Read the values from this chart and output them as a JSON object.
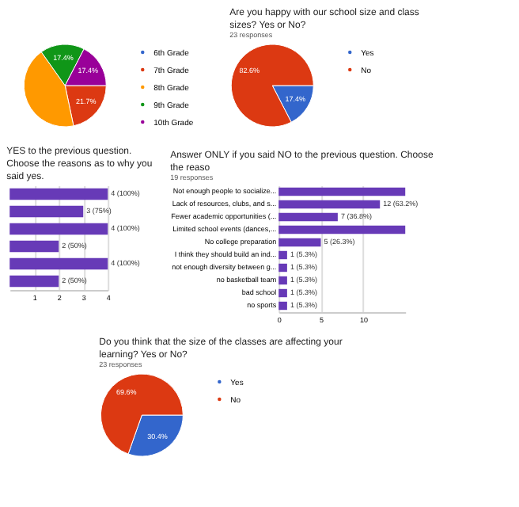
{
  "chart_data": [
    {
      "type": "pie",
      "categories": [
        "6th Grade",
        "7th Grade",
        "8th Grade",
        "9th Grade",
        "10th Grade"
      ],
      "values": [
        0,
        21.7,
        43.5,
        17.4,
        17.4
      ],
      "colors": [
        "#3366cc",
        "#dc3912",
        "#ff9900",
        "#109618",
        "#990099"
      ],
      "value_labels": [
        null,
        "21.7%",
        null,
        "17.4%",
        "17.4%"
      ],
      "legend": "right"
    },
    {
      "type": "pie",
      "title": "Are you happy with our school size and class sizes? Yes or No?",
      "subtitle": "23 responses",
      "categories": [
        "Yes",
        "No"
      ],
      "values": [
        17.4,
        82.6
      ],
      "colors": [
        "#3366cc",
        "#dc3912"
      ],
      "value_labels": [
        "17.4%",
        "82.6%"
      ],
      "legend": "right"
    },
    {
      "type": "bar",
      "orientation": "horizontal",
      "title": "YES to the previous question. Choose the reasons as to why you said yes.",
      "categories": [
        null,
        null,
        null,
        null,
        null,
        null
      ],
      "values": [
        4,
        3,
        4,
        2,
        4,
        2
      ],
      "color": "#673ab7",
      "value_labels": [
        "4 (100%)",
        "3 (75%)",
        "4 (100%)",
        "2 (50%)",
        "4 (100%)",
        "2 (50%)"
      ],
      "xlim": [
        0,
        4
      ],
      "xticks": [
        1,
        2,
        3,
        4
      ],
      "grid": "x"
    },
    {
      "type": "bar",
      "orientation": "horizontal",
      "title": "Answer ONLY if you said NO to the previous question. Choose the reaso",
      "subtitle": "19 responses",
      "categories": [
        "Not enough people to socialize...",
        "Lack of resources, clubs, and s...",
        "Fewer academic opportunities (...",
        "Limited school events (dances,...",
        "No college preparation",
        "I think they should build an ind...",
        "not enough diversity between g...",
        "no basketball team",
        "bad school",
        "no sports"
      ],
      "values": [
        15,
        12,
        7,
        15,
        5,
        1,
        1,
        1,
        1,
        1
      ],
      "color": "#673ab7",
      "value_labels": [
        null,
        "12 (63.2%)",
        "7 (36.8%)",
        null,
        "5 (26.3%)",
        "1 (5.3%)",
        "1 (5.3%)",
        "1 (5.3%)",
        "1 (5.3%)",
        "1 (5.3%)"
      ],
      "xlim": [
        0,
        15
      ],
      "xticks": [
        0,
        5,
        10
      ],
      "grid": "x"
    },
    {
      "type": "pie",
      "title": "Do you think that the size of the classes are affecting your learning? Yes or No?",
      "subtitle": "23 responses",
      "categories": [
        "Yes",
        "No"
      ],
      "values": [
        30.4,
        69.6
      ],
      "colors": [
        "#3366cc",
        "#dc3912"
      ],
      "value_labels": [
        "30.4%",
        "69.6%"
      ],
      "legend": "right"
    }
  ]
}
